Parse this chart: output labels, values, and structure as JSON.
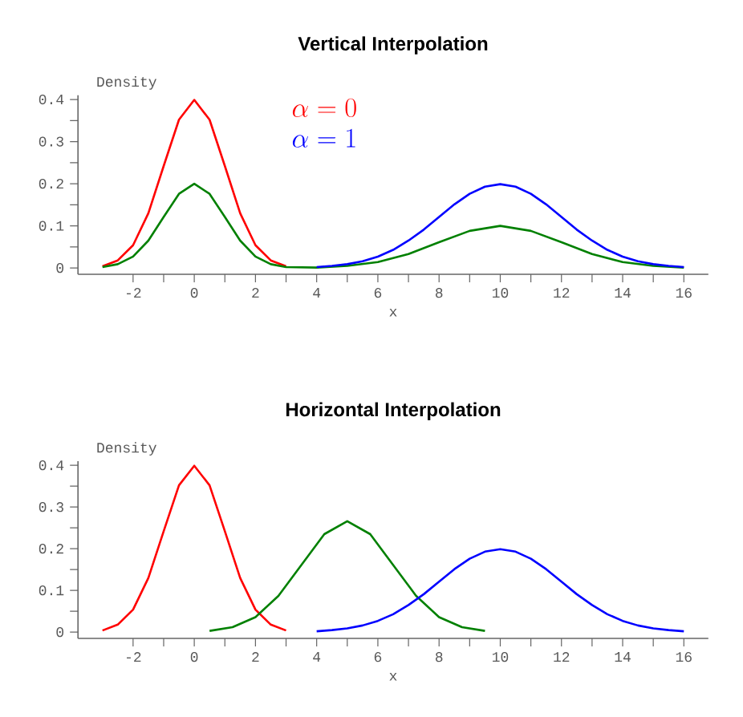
{
  "chart_data": [
    {
      "type": "line",
      "title": "Vertical Interpolation",
      "xlabel": "x",
      "ylabel": "Density",
      "xlim": [
        -3.8,
        16.8
      ],
      "ylim": [
        -0.015,
        0.41
      ],
      "xticks": [
        -2,
        0,
        2,
        4,
        6,
        8,
        10,
        12,
        14,
        16
      ],
      "yticks": [
        0,
        0.1,
        0.2,
        0.3,
        0.4
      ],
      "annotations": [
        "\\alpha = 0",
        "\\alpha = 1"
      ],
      "series": [
        {
          "color": "#ff0000",
          "x": [
            -3,
            -2.5,
            -2,
            -1.5,
            -1,
            -0.5,
            0,
            0.5,
            1,
            1.5,
            2,
            2.5,
            3
          ],
          "values": [
            0.004,
            0.018,
            0.054,
            0.13,
            0.242,
            0.352,
            0.399,
            0.352,
            0.242,
            0.13,
            0.054,
            0.018,
            0.004
          ]
        },
        {
          "color": "#008000",
          "x": [
            -3,
            -2.5,
            -2,
            -1.5,
            -1,
            -0.5,
            0,
            0.5,
            1,
            1.5,
            2,
            2.5,
            3,
            4,
            5,
            6,
            7,
            8,
            9,
            10,
            11,
            12,
            13,
            14,
            15,
            16
          ],
          "values": [
            0.002,
            0.009,
            0.027,
            0.065,
            0.121,
            0.176,
            0.2,
            0.176,
            0.121,
            0.065,
            0.027,
            0.009,
            0.002,
            0.001,
            0.005,
            0.014,
            0.033,
            0.061,
            0.088,
            0.1,
            0.088,
            0.061,
            0.033,
            0.014,
            0.005,
            0.001
          ]
        },
        {
          "color": "#0000ff",
          "x": [
            4,
            4.5,
            5,
            5.5,
            6,
            6.5,
            7,
            7.5,
            8,
            8.5,
            9,
            9.5,
            10,
            10.5,
            11,
            11.5,
            12,
            12.5,
            13,
            13.5,
            14,
            14.5,
            15,
            15.5,
            16
          ],
          "values": [
            0.002,
            0.005,
            0.009,
            0.016,
            0.027,
            0.043,
            0.065,
            0.091,
            0.121,
            0.151,
            0.176,
            0.193,
            0.199,
            0.193,
            0.176,
            0.151,
            0.121,
            0.091,
            0.065,
            0.043,
            0.027,
            0.016,
            0.009,
            0.005,
            0.002
          ]
        }
      ]
    },
    {
      "type": "line",
      "title": "Horizontal Interpolation",
      "xlabel": "x",
      "ylabel": "Density",
      "xlim": [
        -3.8,
        16.8
      ],
      "ylim": [
        -0.015,
        0.41
      ],
      "xticks": [
        -2,
        0,
        2,
        4,
        6,
        8,
        10,
        12,
        14,
        16
      ],
      "yticks": [
        0,
        0.1,
        0.2,
        0.3,
        0.4
      ],
      "series": [
        {
          "color": "#ff0000",
          "x": [
            -3,
            -2.5,
            -2,
            -1.5,
            -1,
            -0.5,
            0,
            0.5,
            1,
            1.5,
            2,
            2.5,
            3
          ],
          "values": [
            0.004,
            0.018,
            0.054,
            0.13,
            0.242,
            0.352,
            0.399,
            0.352,
            0.242,
            0.13,
            0.054,
            0.018,
            0.004
          ]
        },
        {
          "color": "#008000",
          "x": [
            0.5,
            1.25,
            2,
            2.75,
            3.5,
            4.25,
            5,
            5.75,
            6.5,
            7.25,
            8,
            8.75,
            9.5
          ],
          "values": [
            0.003,
            0.012,
            0.036,
            0.087,
            0.161,
            0.235,
            0.266,
            0.235,
            0.161,
            0.087,
            0.036,
            0.012,
            0.003
          ]
        },
        {
          "color": "#0000ff",
          "x": [
            4,
            4.5,
            5,
            5.5,
            6,
            6.5,
            7,
            7.5,
            8,
            8.5,
            9,
            9.5,
            10,
            10.5,
            11,
            11.5,
            12,
            12.5,
            13,
            13.5,
            14,
            14.5,
            15,
            15.5,
            16
          ],
          "values": [
            0.002,
            0.005,
            0.009,
            0.016,
            0.027,
            0.043,
            0.065,
            0.091,
            0.121,
            0.151,
            0.176,
            0.193,
            0.199,
            0.193,
            0.176,
            0.151,
            0.121,
            0.091,
            0.065,
            0.043,
            0.027,
            0.016,
            0.009,
            0.005,
            0.002
          ]
        }
      ]
    }
  ]
}
